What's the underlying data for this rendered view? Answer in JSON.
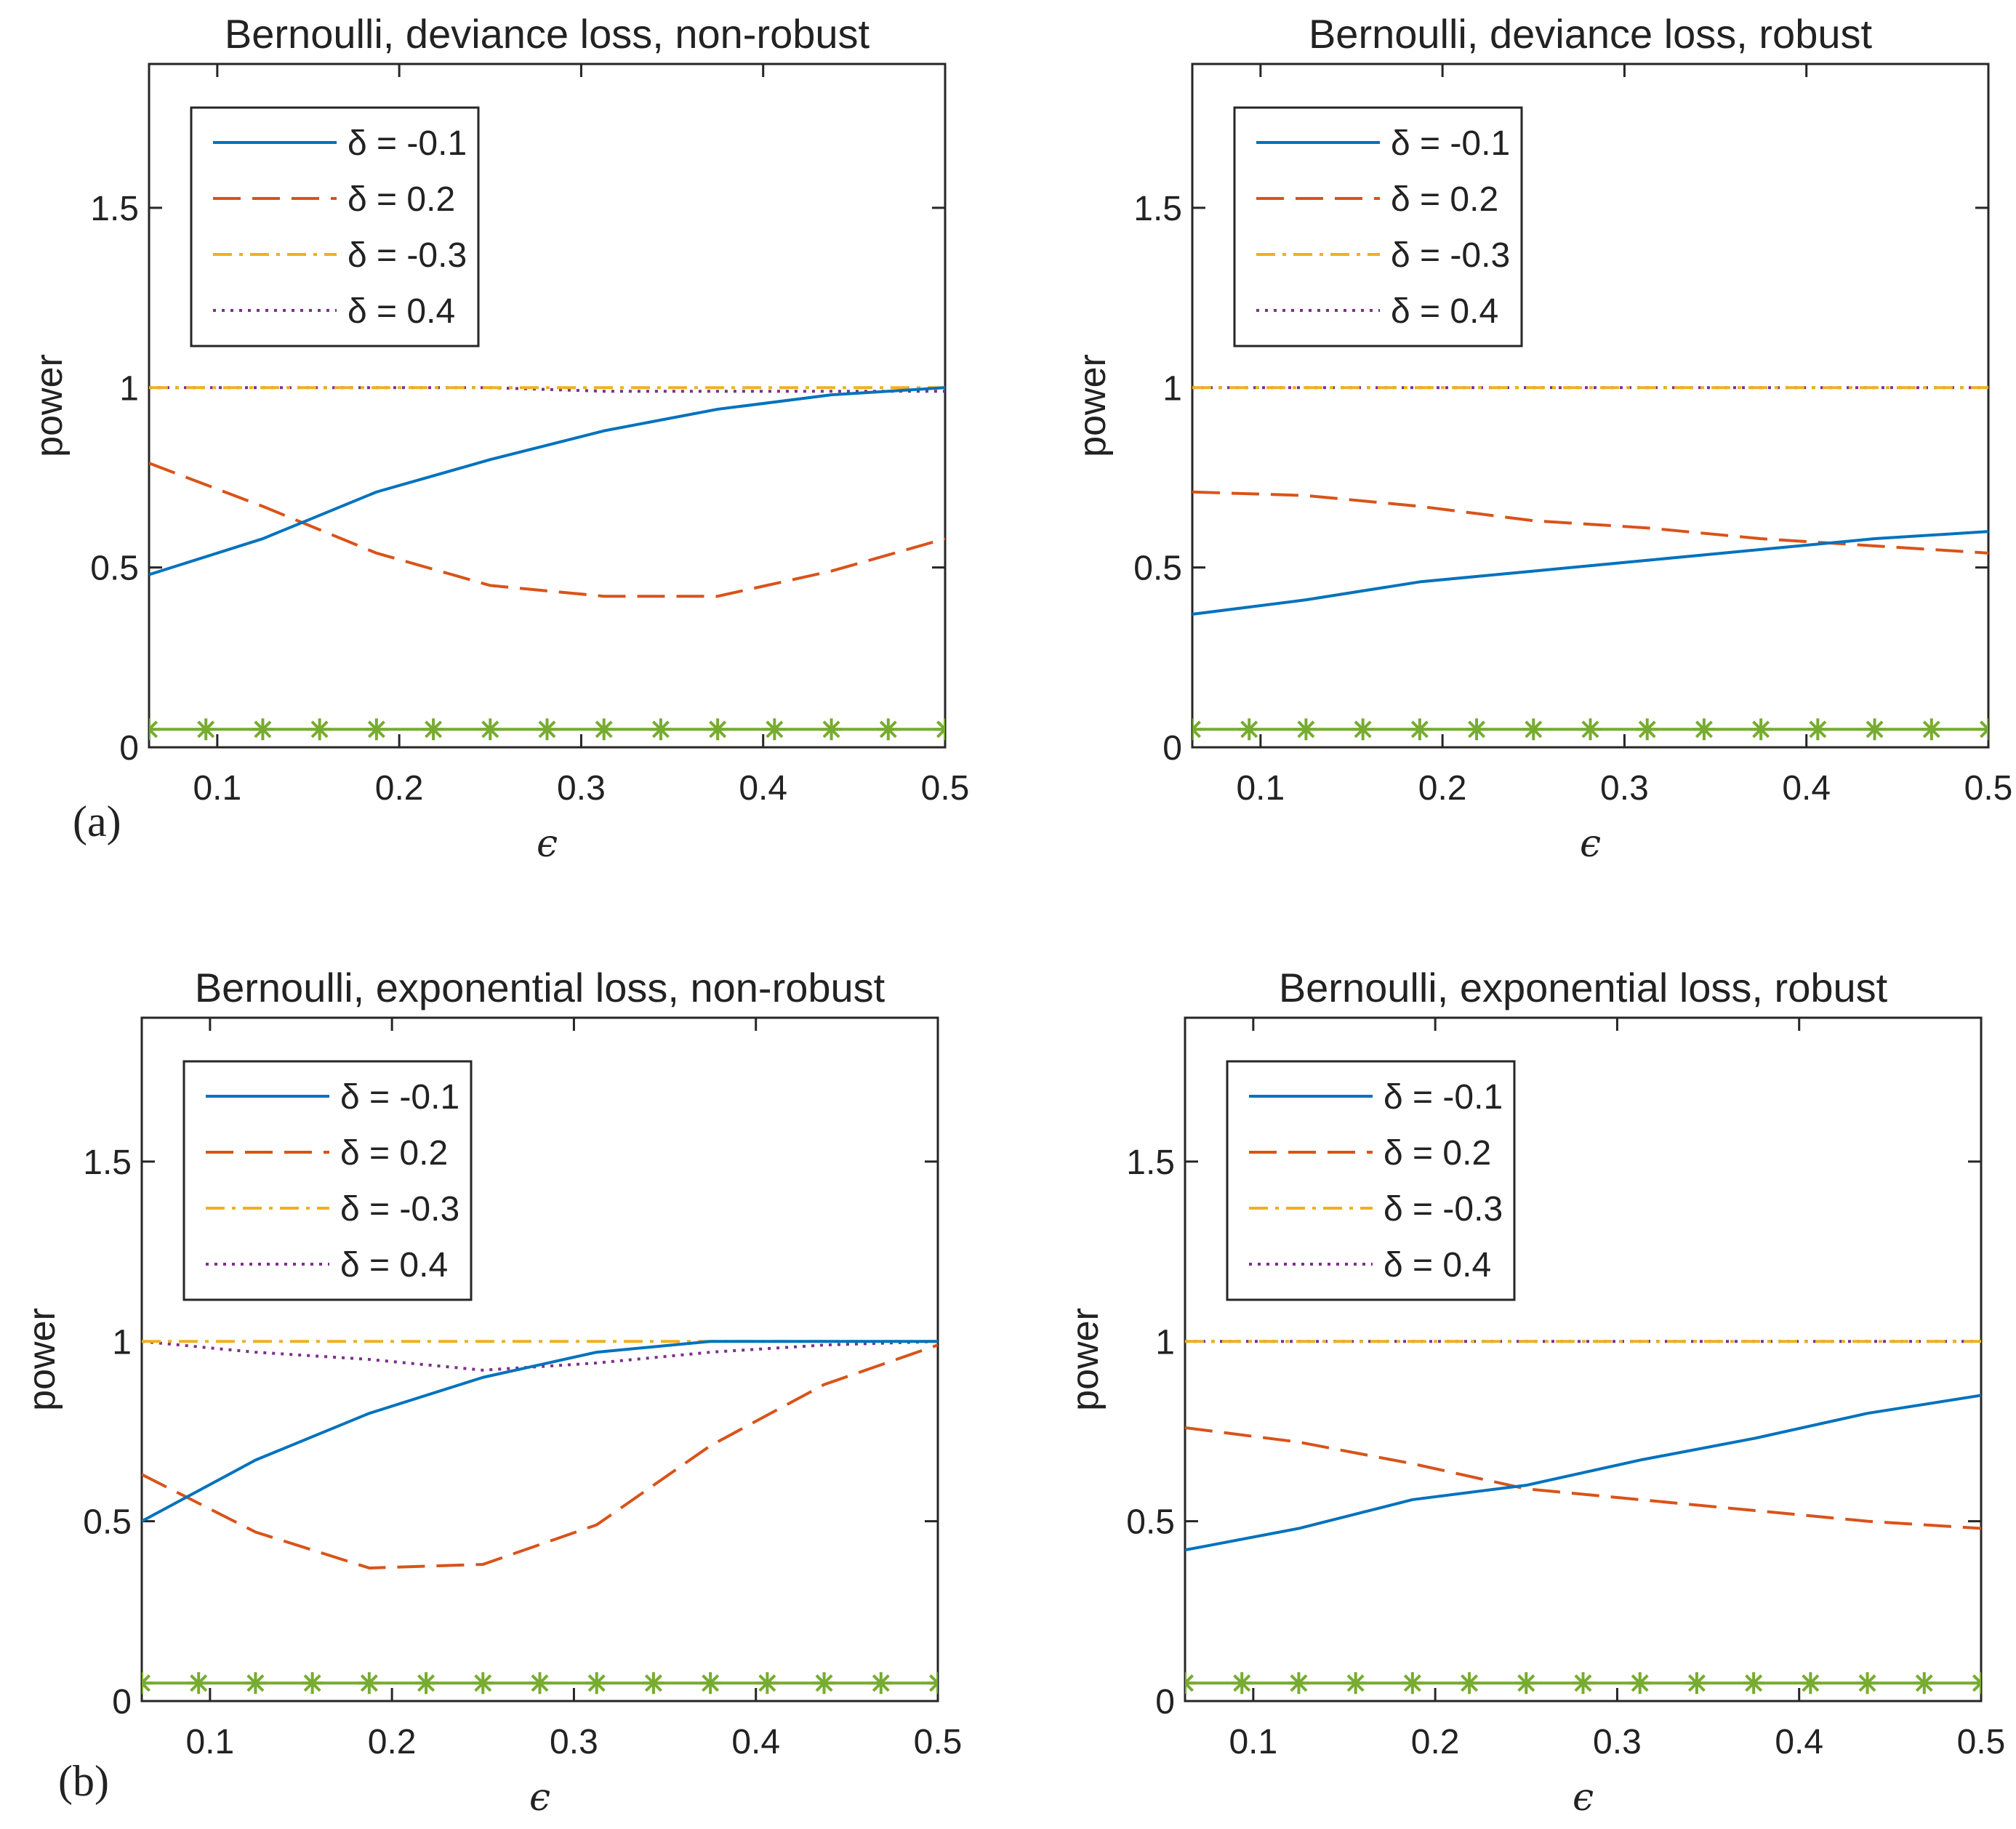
{
  "panel_labels": [
    "(a)",
    "(b)"
  ],
  "chart_data": [
    {
      "type": "line",
      "title": "Bernoulli, deviance loss, non-robust",
      "xlabel": "ϵ",
      "ylabel": "power",
      "xlim": [
        0.0625,
        0.5
      ],
      "ylim": [
        0,
        1.9
      ],
      "xticks": [
        0.1,
        0.2,
        0.3,
        0.4,
        0.5
      ],
      "xtick_labels": [
        "0.1",
        "0.2",
        "0.3",
        "0.4",
        "0.5"
      ],
      "yticks": [
        0,
        0.5,
        1,
        1.5
      ],
      "ytick_labels": [
        "0",
        "0.5",
        "1",
        "1.5"
      ],
      "grid": false,
      "legend_position": "top-left",
      "x": [
        0.0625,
        0.125,
        0.1875,
        0.25,
        0.3125,
        0.375,
        0.4375,
        0.5
      ],
      "series": [
        {
          "name": "δ = -0.1",
          "color": "#0072BD",
          "style": "solid",
          "values": [
            0.48,
            0.58,
            0.71,
            0.8,
            0.88,
            0.94,
            0.98,
            1.0
          ]
        },
        {
          "name": "δ = 0.2",
          "color": "#D95319",
          "style": "dashed",
          "values": [
            0.79,
            0.67,
            0.54,
            0.45,
            0.42,
            0.42,
            0.49,
            0.58
          ]
        },
        {
          "name": "δ = -0.3",
          "color": "#EDB120",
          "style": "dashdot",
          "values": [
            1,
            1,
            1,
            1,
            1,
            1,
            1,
            1
          ]
        },
        {
          "name": "δ = 0.4",
          "color": "#7E2F8E",
          "style": "dotted",
          "values": [
            1,
            1,
            1,
            1,
            0.99,
            0.99,
            0.99,
            0.99
          ]
        }
      ],
      "baseline": {
        "color": "#77AC30",
        "marker": "asterisk",
        "y": 0.05,
        "x": [
          0.0625,
          0.09375,
          0.125,
          0.15625,
          0.1875,
          0.21875,
          0.25,
          0.28125,
          0.3125,
          0.34375,
          0.375,
          0.40625,
          0.4375,
          0.46875,
          0.5
        ]
      }
    },
    {
      "type": "line",
      "title": "Bernoulli, deviance loss, robust",
      "xlabel": "ϵ",
      "ylabel": "power",
      "xlim": [
        0.0625,
        0.5
      ],
      "ylim": [
        0,
        1.9
      ],
      "xticks": [
        0.1,
        0.2,
        0.3,
        0.4,
        0.5
      ],
      "xtick_labels": [
        "0.1",
        "0.2",
        "0.3",
        "0.4",
        "0.5"
      ],
      "yticks": [
        0,
        0.5,
        1,
        1.5
      ],
      "ytick_labels": [
        "0",
        "0.5",
        "1",
        "1.5"
      ],
      "grid": false,
      "legend_position": "top-left",
      "x": [
        0.0625,
        0.125,
        0.1875,
        0.25,
        0.3125,
        0.375,
        0.4375,
        0.5
      ],
      "series": [
        {
          "name": "δ = -0.1",
          "color": "#0072BD",
          "style": "solid",
          "values": [
            0.37,
            0.41,
            0.46,
            0.49,
            0.52,
            0.55,
            0.58,
            0.6
          ]
        },
        {
          "name": "δ = 0.2",
          "color": "#D95319",
          "style": "dashed",
          "values": [
            0.71,
            0.7,
            0.67,
            0.63,
            0.61,
            0.58,
            0.56,
            0.54
          ]
        },
        {
          "name": "δ = -0.3",
          "color": "#EDB120",
          "style": "dashdot",
          "values": [
            1,
            1,
            1,
            1,
            1,
            1,
            1,
            1
          ]
        },
        {
          "name": "δ = 0.4",
          "color": "#7E2F8E",
          "style": "dotted",
          "values": [
            1,
            1,
            1,
            1,
            1,
            1,
            1,
            1
          ]
        }
      ],
      "baseline": {
        "color": "#77AC30",
        "marker": "asterisk",
        "y": 0.05,
        "x": [
          0.0625,
          0.09375,
          0.125,
          0.15625,
          0.1875,
          0.21875,
          0.25,
          0.28125,
          0.3125,
          0.34375,
          0.375,
          0.40625,
          0.4375,
          0.46875,
          0.5
        ]
      }
    },
    {
      "type": "line",
      "title": "Bernoulli, exponential loss, non-robust",
      "xlabel": "ϵ",
      "ylabel": "power",
      "xlim": [
        0.0625,
        0.5
      ],
      "ylim": [
        0,
        1.9
      ],
      "xticks": [
        0.1,
        0.2,
        0.3,
        0.4,
        0.5
      ],
      "xtick_labels": [
        "0.1",
        "0.2",
        "0.3",
        "0.4",
        "0.5"
      ],
      "yticks": [
        0,
        0.5,
        1,
        1.5
      ],
      "ytick_labels": [
        "0",
        "0.5",
        "1",
        "1.5"
      ],
      "grid": false,
      "legend_position": "top-left",
      "x": [
        0.0625,
        0.125,
        0.1875,
        0.25,
        0.3125,
        0.375,
        0.4375,
        0.5
      ],
      "series": [
        {
          "name": "δ = -0.1",
          "color": "#0072BD",
          "style": "solid",
          "values": [
            0.5,
            0.67,
            0.8,
            0.9,
            0.97,
            1.0,
            1.0,
            1.0
          ]
        },
        {
          "name": "δ = 0.2",
          "color": "#D95319",
          "style": "dashed",
          "values": [
            0.63,
            0.47,
            0.37,
            0.38,
            0.49,
            0.71,
            0.88,
            0.99
          ]
        },
        {
          "name": "δ = -0.3",
          "color": "#EDB120",
          "style": "dashdot",
          "values": [
            1,
            1,
            1,
            1,
            1,
            1,
            1,
            1
          ]
        },
        {
          "name": "δ = 0.4",
          "color": "#7E2F8E",
          "style": "dotted",
          "values": [
            1.0,
            0.97,
            0.95,
            0.92,
            0.94,
            0.97,
            0.99,
            1.0
          ]
        }
      ],
      "baseline": {
        "color": "#77AC30",
        "marker": "asterisk",
        "y": 0.05,
        "x": [
          0.0625,
          0.09375,
          0.125,
          0.15625,
          0.1875,
          0.21875,
          0.25,
          0.28125,
          0.3125,
          0.34375,
          0.375,
          0.40625,
          0.4375,
          0.46875,
          0.5
        ]
      }
    },
    {
      "type": "line",
      "title": "Bernoulli, exponential loss, robust",
      "xlabel": "ϵ",
      "ylabel": "power",
      "xlim": [
        0.0625,
        0.5
      ],
      "ylim": [
        0,
        1.9
      ],
      "xticks": [
        0.1,
        0.2,
        0.3,
        0.4,
        0.5
      ],
      "xtick_labels": [
        "0.1",
        "0.2",
        "0.3",
        "0.4",
        "0.5"
      ],
      "yticks": [
        0,
        0.5,
        1,
        1.5
      ],
      "ytick_labels": [
        "0",
        "0.5",
        "1",
        "1.5"
      ],
      "grid": false,
      "legend_position": "top-left",
      "x": [
        0.0625,
        0.125,
        0.1875,
        0.25,
        0.3125,
        0.375,
        0.4375,
        0.5
      ],
      "series": [
        {
          "name": "δ = -0.1",
          "color": "#0072BD",
          "style": "solid",
          "values": [
            0.42,
            0.48,
            0.56,
            0.6,
            0.67,
            0.73,
            0.8,
            0.85
          ]
        },
        {
          "name": "δ = 0.2",
          "color": "#D95319",
          "style": "dashed",
          "values": [
            0.76,
            0.72,
            0.66,
            0.59,
            0.56,
            0.53,
            0.5,
            0.48
          ]
        },
        {
          "name": "δ = -0.3",
          "color": "#EDB120",
          "style": "dashdot",
          "values": [
            1,
            1,
            1,
            1,
            1,
            1,
            1,
            1
          ]
        },
        {
          "name": "δ = 0.4",
          "color": "#7E2F8E",
          "style": "dotted",
          "values": [
            1,
            1,
            1,
            1,
            1,
            1,
            1,
            1
          ]
        }
      ],
      "baseline": {
        "color": "#77AC30",
        "marker": "asterisk",
        "y": 0.05,
        "x": [
          0.0625,
          0.09375,
          0.125,
          0.15625,
          0.1875,
          0.21875,
          0.25,
          0.28125,
          0.3125,
          0.34375,
          0.375,
          0.40625,
          0.4375,
          0.46875,
          0.5
        ]
      }
    }
  ]
}
